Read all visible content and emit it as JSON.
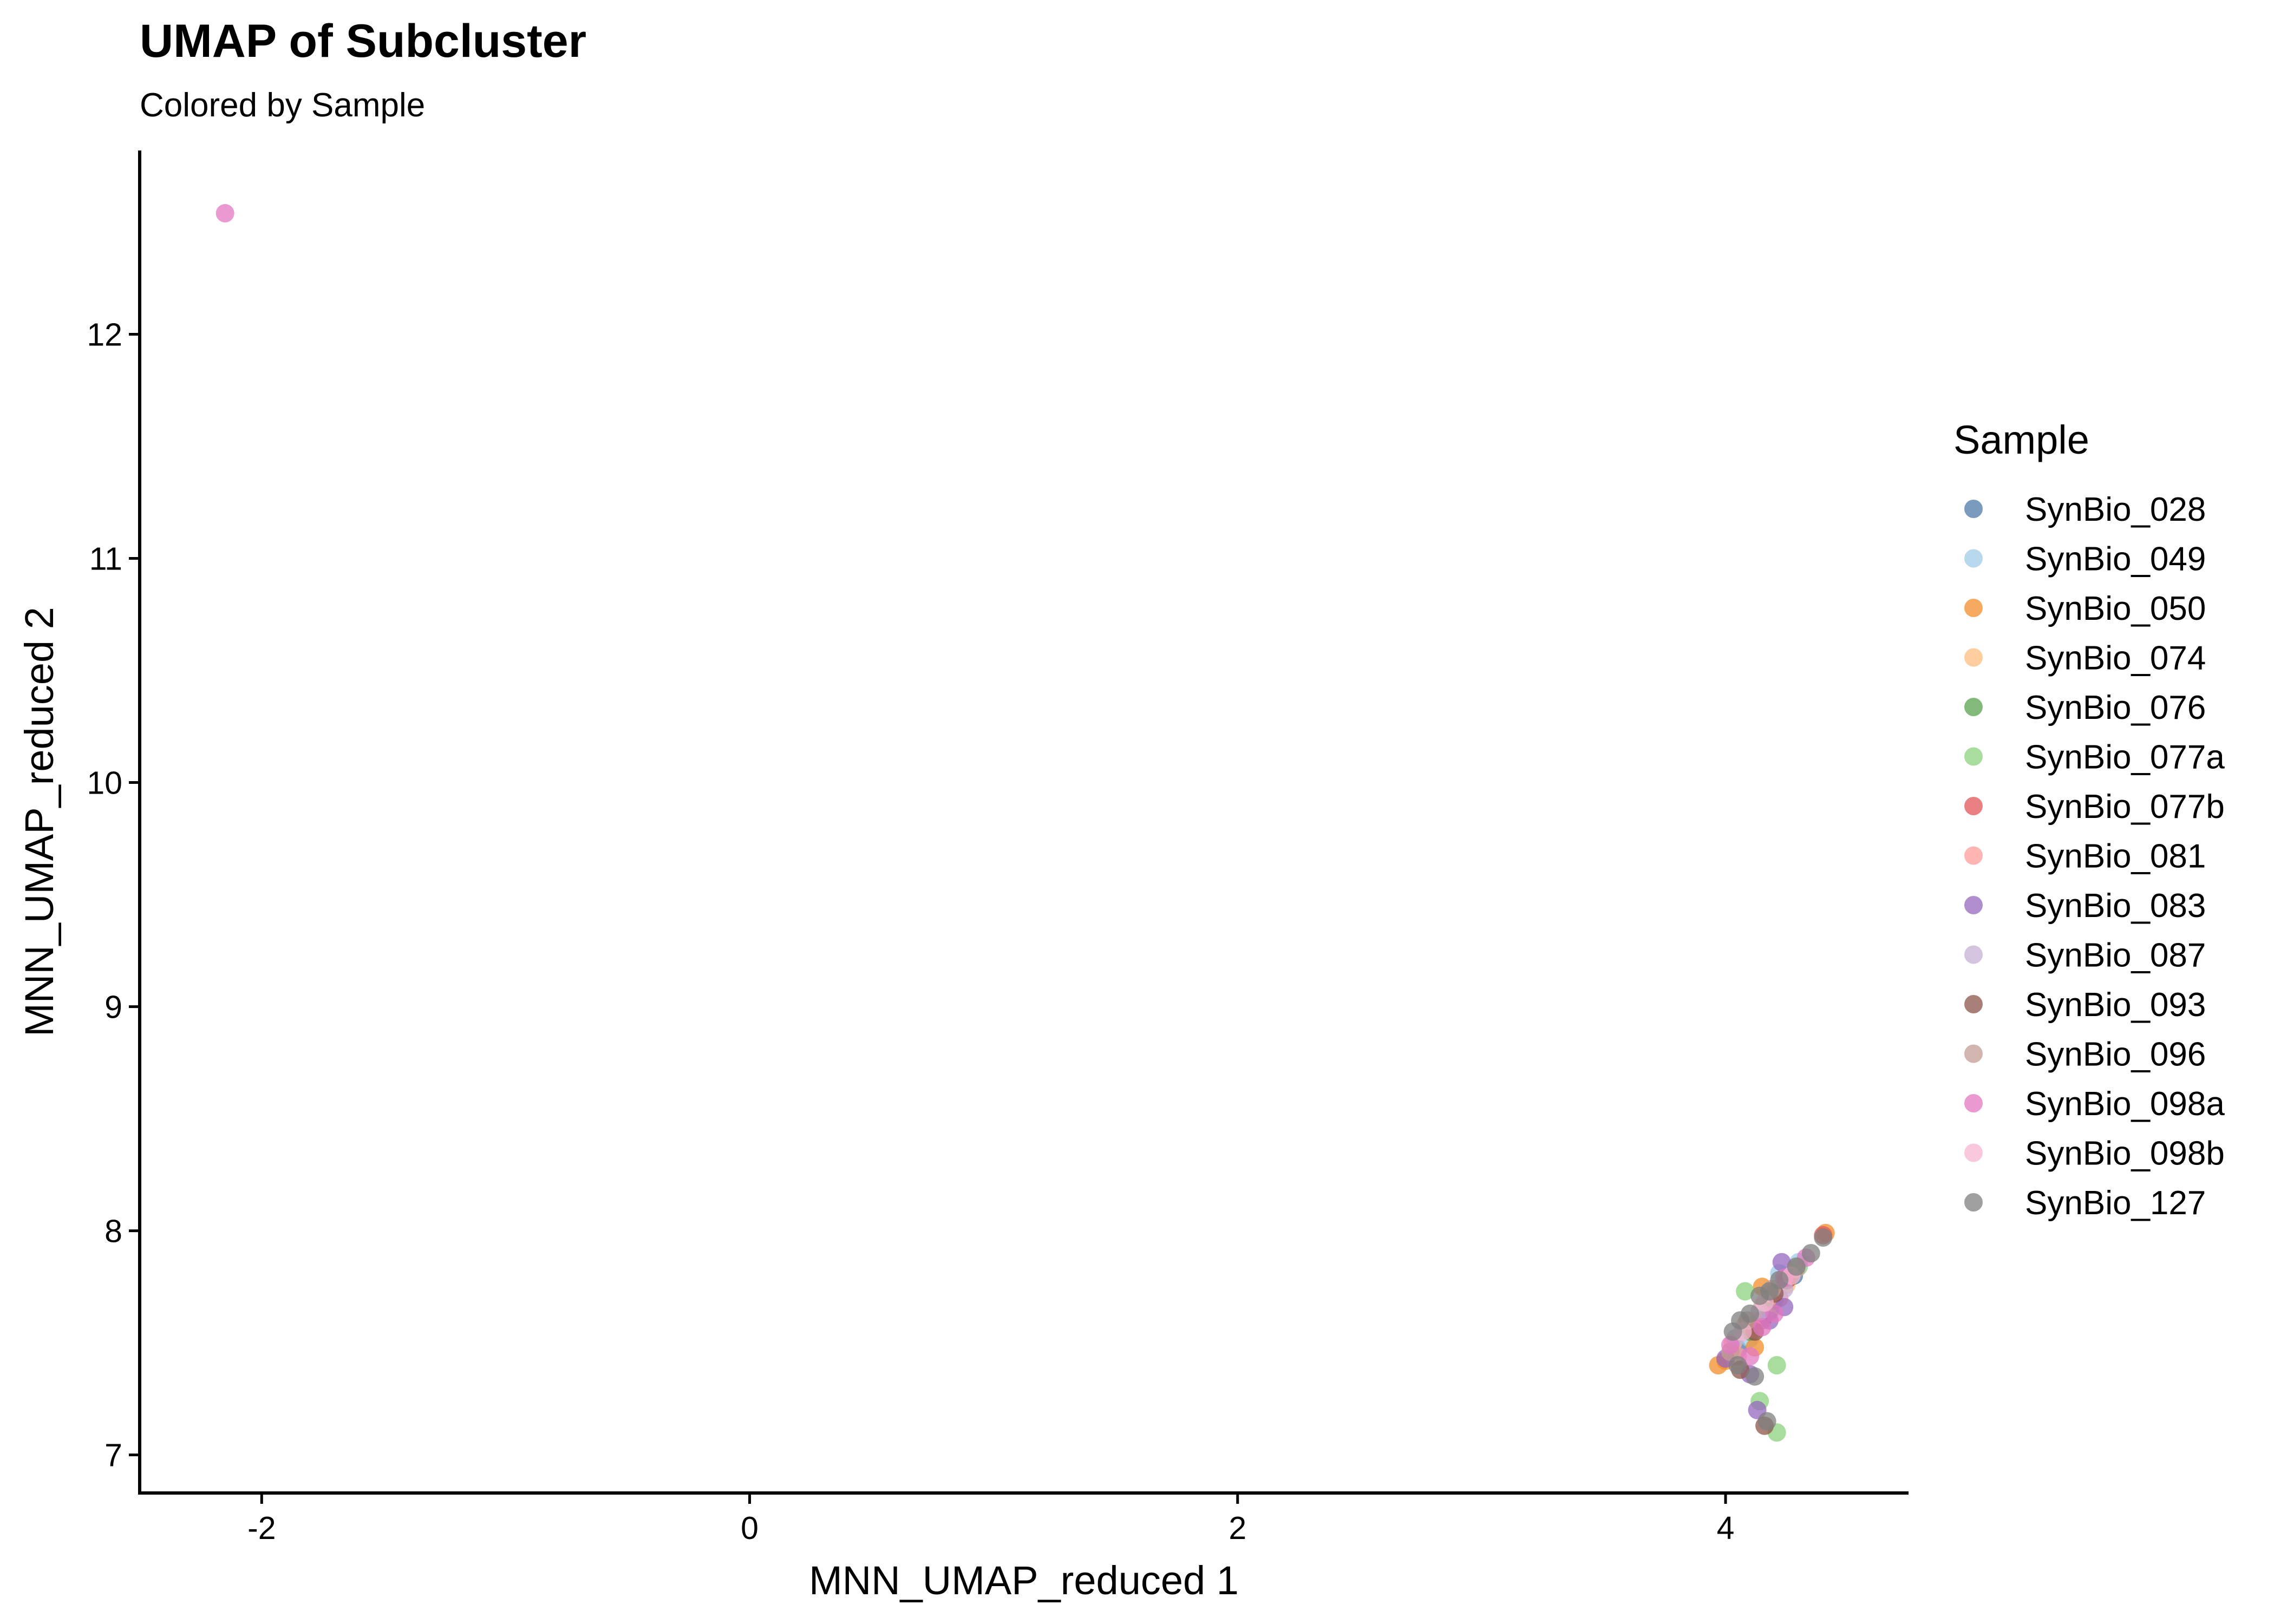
{
  "chart_data": {
    "type": "scatter",
    "title": "UMAP of Subcluster",
    "subtitle": "Colored by Sample",
    "xlabel": "MNN_UMAP_reduced 1",
    "ylabel": "MNN_UMAP_reduced 2",
    "xlim": [
      -2.5,
      4.75
    ],
    "ylim": [
      6.83,
      12.82
    ],
    "xticks": [
      -2,
      0,
      2,
      4
    ],
    "yticks": [
      7,
      8,
      9,
      10,
      11,
      12
    ],
    "grid": false,
    "legend_position": "right",
    "legend_title": "Sample",
    "series": [
      {
        "name": "SynBio_028",
        "color": "#4E79A7",
        "points": [
          [
            4.05,
            7.47
          ],
          [
            4.12,
            7.58
          ],
          [
            4.2,
            7.69
          ],
          [
            4.28,
            7.8
          ]
        ]
      },
      {
        "name": "SynBio_049",
        "color": "#A0CBE8",
        "points": [
          [
            4.1,
            7.52
          ],
          [
            4.18,
            7.72
          ],
          [
            4.22,
            7.81
          ],
          [
            4.3,
            7.86
          ]
        ]
      },
      {
        "name": "SynBio_050",
        "color": "#F28E2B",
        "points": [
          [
            3.97,
            7.4
          ],
          [
            4.0,
            7.42
          ],
          [
            4.12,
            7.48
          ],
          [
            4.15,
            7.75
          ],
          [
            4.41,
            7.99
          ]
        ]
      },
      {
        "name": "SynBio_074",
        "color": "#FFBE7D",
        "points": [
          [
            4.03,
            7.5
          ],
          [
            4.08,
            7.58
          ],
          [
            4.15,
            7.66
          ],
          [
            4.25,
            7.76
          ]
        ]
      },
      {
        "name": "SynBio_076",
        "color": "#59A14F",
        "points": [
          [
            4.1,
            7.55
          ],
          [
            4.18,
            7.64
          ],
          [
            4.26,
            7.79
          ]
        ]
      },
      {
        "name": "SynBio_077a",
        "color": "#8CD17D",
        "points": [
          [
            4.08,
            7.73
          ],
          [
            4.14,
            7.24
          ],
          [
            4.21,
            7.4
          ],
          [
            4.21,
            7.1
          ],
          [
            4.16,
            7.62
          ],
          [
            4.3,
            7.84
          ]
        ]
      },
      {
        "name": "SynBio_077b",
        "color": "#E15759",
        "points": [
          [
            4.4,
            7.98
          ],
          [
            4.15,
            7.6
          ],
          [
            4.25,
            7.78
          ]
        ]
      },
      {
        "name": "SynBio_081",
        "color": "#FF9D9A",
        "points": [
          [
            4.05,
            7.44
          ],
          [
            4.12,
            7.56
          ],
          [
            4.22,
            7.7
          ]
        ]
      },
      {
        "name": "SynBio_083",
        "color": "#9467BD",
        "points": [
          [
            4.0,
            7.43
          ],
          [
            4.1,
            7.36
          ],
          [
            4.13,
            7.2
          ],
          [
            4.23,
            7.86
          ],
          [
            4.24,
            7.66
          ],
          [
            4.18,
            7.6
          ]
        ]
      },
      {
        "name": "SynBio_087",
        "color": "#C5B0D5",
        "points": [
          [
            4.04,
            7.52
          ],
          [
            4.14,
            7.64
          ],
          [
            4.24,
            7.74
          ]
        ]
      },
      {
        "name": "SynBio_093",
        "color": "#8C564B",
        "points": [
          [
            4.16,
            7.13
          ],
          [
            4.06,
            7.38
          ],
          [
            4.12,
            7.55
          ],
          [
            4.2,
            7.72
          ]
        ]
      },
      {
        "name": "SynBio_096",
        "color": "#C49C94",
        "points": [
          [
            4.02,
            7.46
          ],
          [
            4.09,
            7.6
          ],
          [
            4.19,
            7.74
          ],
          [
            4.29,
            7.83
          ]
        ]
      },
      {
        "name": "SynBio_098a",
        "color": "#E377C2",
        "points": [
          [
            -2.15,
            12.54
          ],
          [
            4.02,
            7.49
          ],
          [
            4.1,
            7.44
          ],
          [
            4.15,
            7.57
          ],
          [
            4.2,
            7.63
          ],
          [
            4.24,
            7.79
          ],
          [
            4.33,
            7.88
          ]
        ]
      },
      {
        "name": "SynBio_098b",
        "color": "#F7B6D2",
        "points": [
          [
            4.07,
            7.55
          ],
          [
            4.16,
            7.68
          ],
          [
            4.27,
            7.8
          ]
        ]
      },
      {
        "name": "SynBio_127",
        "color": "#7F7F7F",
        "points": [
          [
            4.03,
            7.55
          ],
          [
            4.06,
            7.6
          ],
          [
            4.1,
            7.63
          ],
          [
            4.14,
            7.71
          ],
          [
            4.18,
            7.73
          ],
          [
            4.22,
            7.78
          ],
          [
            4.29,
            7.84
          ],
          [
            4.35,
            7.9
          ],
          [
            4.4,
            7.97
          ],
          [
            4.05,
            7.4
          ],
          [
            4.12,
            7.35
          ],
          [
            4.17,
            7.15
          ]
        ]
      }
    ]
  }
}
